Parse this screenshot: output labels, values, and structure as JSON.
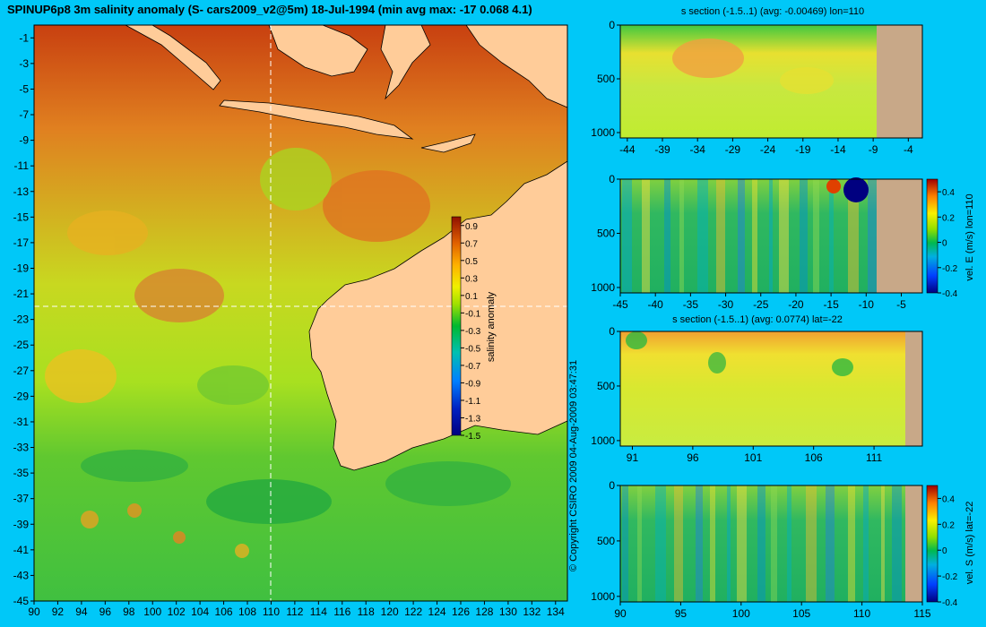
{
  "title": "SPINUP6p8 3m salinity anomaly (S- cars2009_v2@5m) 18-Jul-1994 (min avg max: -17 0.068 4.1)",
  "copyright": "© Copyright CSIRO 2009  04-Aug-2009 03:47:31",
  "colors": {
    "background": "#00c8f8",
    "land": "#ffcc99",
    "section_land": "#c8a888",
    "guide_line": "#ffffff"
  },
  "chart_data": [
    {
      "type": "heatmap",
      "title": "",
      "xlabel": "",
      "ylabel": "",
      "xlim": [
        90,
        135
      ],
      "ylim": [
        -45,
        0
      ],
      "x_ticks": [
        90,
        92,
        94,
        96,
        98,
        100,
        102,
        104,
        106,
        108,
        110,
        112,
        114,
        116,
        118,
        120,
        122,
        124,
        126,
        128,
        130,
        132,
        134
      ],
      "y_ticks": [
        -1,
        -3,
        -5,
        -7,
        -9,
        -11,
        -13,
        -15,
        -17,
        -19,
        -21,
        -23,
        -25,
        -27,
        -29,
        -31,
        -33,
        -35,
        -37,
        -39,
        -41,
        -43,
        -45
      ],
      "crosshair": {
        "lon": 110,
        "lat": -22
      },
      "colorbar": {
        "label": "salinity anomaly",
        "range": [
          -1.5,
          1.0
        ],
        "ticks": [
          0.9,
          0.7,
          0.5,
          0.3,
          0.1,
          -0.1,
          -0.3,
          -0.5,
          -0.7,
          -0.9,
          -1.1,
          -1.3,
          -1.5
        ]
      }
    },
    {
      "type": "heatmap",
      "title": "s section (-1.5..1) (avg: -0.00469) lon=110",
      "xlabel": "",
      "ylabel": "",
      "xlim": [
        -45,
        -2
      ],
      "ylim": [
        1050,
        0
      ],
      "x_ticks": [
        -44,
        -39,
        -34,
        -29,
        -24,
        -19,
        -14,
        -9,
        -4
      ],
      "y_ticks": [
        0,
        500,
        1000
      ],
      "land_from": -8.5
    },
    {
      "type": "heatmap",
      "title": "",
      "xlabel": "",
      "ylabel": "",
      "xlim": [
        -45,
        -2
      ],
      "ylim": [
        1050,
        0
      ],
      "x_ticks": [
        -45,
        -40,
        -35,
        -30,
        -25,
        -20,
        -15,
        -10,
        -5
      ],
      "y_ticks": [
        0,
        500,
        1000
      ],
      "land_from": -8.5,
      "colorbar": {
        "label": "vel. E (m/s) lon=110",
        "range": [
          -0.4,
          0.5
        ],
        "ticks": [
          0.4,
          0.2,
          0,
          -0.2,
          -0.4
        ]
      }
    },
    {
      "type": "heatmap",
      "title": "s section (-1.5..1) (avg: 0.0774) lat=-22",
      "xlabel": "",
      "ylabel": "",
      "xlim": [
        90,
        115
      ],
      "ylim": [
        1050,
        0
      ],
      "x_ticks": [
        91,
        96,
        101,
        106,
        111
      ],
      "y_ticks": [
        0,
        500,
        1000
      ],
      "land_from": 113.6
    },
    {
      "type": "heatmap",
      "title": "",
      "xlabel": "",
      "ylabel": "",
      "xlim": [
        90,
        115
      ],
      "ylim": [
        1050,
        0
      ],
      "x_ticks": [
        90,
        95,
        100,
        105,
        110,
        115
      ],
      "y_ticks": [
        0,
        500,
        1000
      ],
      "land_from": 113.6,
      "colorbar": {
        "label": "vel. S (m/s) lat=-22",
        "range": [
          -0.4,
          0.5
        ],
        "ticks": [
          0.4,
          0.2,
          0,
          -0.2,
          -0.4
        ]
      }
    }
  ]
}
